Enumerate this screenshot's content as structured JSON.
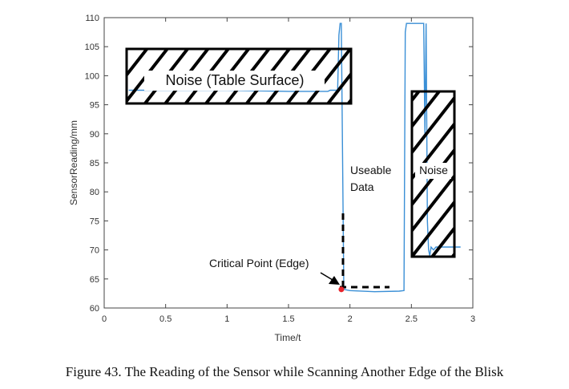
{
  "chart_data": {
    "type": "line",
    "xlabel": "Time/t",
    "ylabel": "SensorReading/mm",
    "xlim": [
      0,
      3
    ],
    "ylim": [
      60,
      110
    ],
    "xticks": [
      0,
      0.5,
      1,
      1.5,
      2,
      2.5,
      3
    ],
    "xtick_labels": [
      "0",
      "0.5",
      "1",
      "1.5",
      "2",
      "2.5",
      "3"
    ],
    "yticks": [
      60,
      65,
      70,
      75,
      80,
      85,
      90,
      95,
      100,
      105,
      110
    ],
    "ytick_labels": [
      "60",
      "65",
      "70",
      "75",
      "80",
      "85",
      "90",
      "95",
      "100",
      "105",
      "110"
    ],
    "grid": false,
    "series": [
      {
        "color": "#3a8fd6",
        "x": [
          0.2,
          0.3,
          1.0,
          1.5,
          1.82,
          1.84,
          1.85,
          1.88,
          1.89,
          1.9,
          1.91,
          1.92,
          1.93,
          1.95,
          2.0,
          2.2,
          2.4,
          2.44,
          2.45,
          2.46,
          2.6,
          2.61,
          2.62,
          2.63,
          2.64,
          2.65,
          2.66,
          2.68,
          2.7,
          2.8,
          2.9
        ],
        "y": [
          97.5,
          97.5,
          97.5,
          97.3,
          97.3,
          97.5,
          97.5,
          97.5,
          97.5,
          97.5,
          107.0,
          109.0,
          109.0,
          63.2,
          63.0,
          62.8,
          62.9,
          63.0,
          107.5,
          109.0,
          109.0,
          90.0,
          109.0,
          75.0,
          70.0,
          69.0,
          70.5,
          70.0,
          70.5,
          70.5,
          70.5
        ]
      }
    ],
    "annotations": {
      "noise_table": "Noise (Table Surface)",
      "useable": [
        "Useable",
        "Data"
      ],
      "noise_right": "Noise",
      "critical": "Critical Point (Edge)",
      "critical_point": [
        1.93,
        63.2
      ]
    },
    "caption": "Figure 43. The Reading of the Sensor while Scanning Another Edge of the Blisk"
  }
}
